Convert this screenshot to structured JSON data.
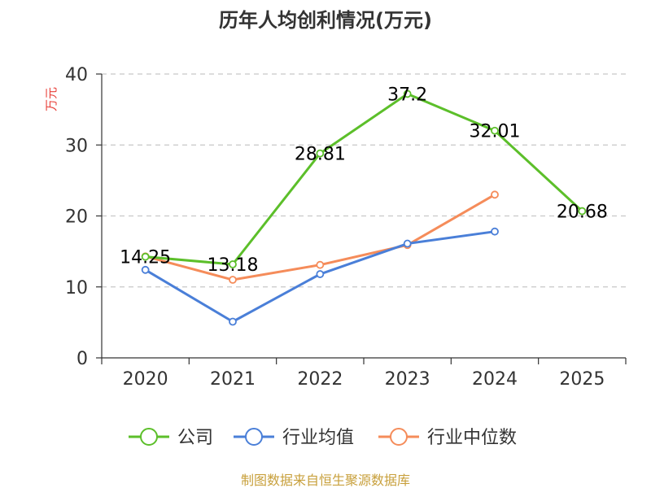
{
  "chart_data": {
    "type": "line",
    "title": "历年人均创利情况(万元)",
    "ylabel": "万元",
    "xlabel": "",
    "ylim": [
      0,
      40
    ],
    "yticks": [
      0,
      10,
      20,
      30,
      40
    ],
    "categories": [
      "2020",
      "2021",
      "2022",
      "2023",
      "2024",
      "2025"
    ],
    "series": [
      {
        "name": "公司",
        "color": "#5cbf2a",
        "values": [
          14.25,
          13.18,
          28.81,
          37.2,
          32.01,
          20.68
        ],
        "labels": [
          "14.25",
          "13.18",
          "28.81",
          "37.2",
          "32.01",
          "20.68"
        ]
      },
      {
        "name": "行业均值",
        "color": "#4a7fd8",
        "values": [
          12.4,
          5.1,
          11.8,
          16.1,
          17.8,
          null
        ]
      },
      {
        "name": "行业中位数",
        "color": "#f58c5a",
        "values": [
          14.3,
          11.0,
          13.1,
          15.9,
          23.0,
          null
        ]
      }
    ],
    "legend_position": "bottom",
    "grid": true
  },
  "footer": {
    "source": "制图数据来自恒生聚源数据库"
  }
}
